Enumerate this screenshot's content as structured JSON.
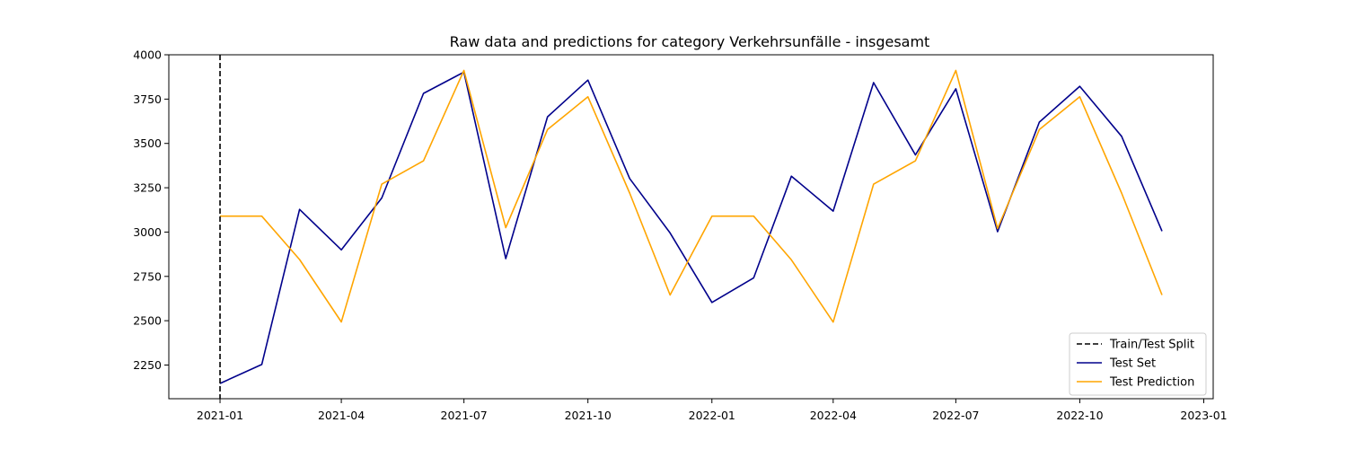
{
  "chart_data": {
    "type": "line",
    "title": "Raw data and predictions for category Verkehrsunfälle - insgesamt",
    "xlabel": "",
    "ylabel": "",
    "x_tick_labels": [
      "2021-01",
      "2021-04",
      "2021-07",
      "2021-10",
      "2022-01",
      "2022-04",
      "2022-07",
      "2022-10",
      "2023-01"
    ],
    "x_ticks": [
      "2021-01-01",
      "2021-04-01",
      "2021-07-01",
      "2021-10-01",
      "2022-01-01",
      "2022-04-01",
      "2022-07-01",
      "2022-10-01",
      "2023-01-01"
    ],
    "y_ticks": [
      2250,
      2500,
      2750,
      3000,
      3250,
      3500,
      3750,
      4000
    ],
    "xlim": [
      "2020-11-24",
      "2023-01-08"
    ],
    "ylim": [
      2060,
      4000
    ],
    "grid": false,
    "legend_position": "lower-right",
    "x": [
      "2021-01-01",
      "2021-02-01",
      "2021-03-01",
      "2021-04-01",
      "2021-05-01",
      "2021-06-01",
      "2021-07-01",
      "2021-08-01",
      "2021-09-01",
      "2021-10-01",
      "2021-11-01",
      "2021-12-01",
      "2022-01-01",
      "2022-02-01",
      "2022-03-01",
      "2022-04-01",
      "2022-05-01",
      "2022-06-01",
      "2022-07-01",
      "2022-08-01",
      "2022-09-01",
      "2022-10-01",
      "2022-11-01",
      "2022-12-01"
    ],
    "split": {
      "name": "Train/Test Split",
      "x": "2021-01-01",
      "color": "#000000",
      "style": "dashed"
    },
    "series": [
      {
        "name": "Test Set",
        "color": "#00008b",
        "values": [
          2146,
          2253,
          3128,
          2900,
          3192,
          3782,
          3902,
          2850,
          3650,
          3857,
          3302,
          2995,
          2603,
          2742,
          3315,
          3118,
          3843,
          3435,
          3808,
          3002,
          3620,
          3822,
          3540,
          3005
        ]
      },
      {
        "name": "Test Prediction",
        "color": "#ffa500",
        "values": [
          3090,
          3090,
          2845,
          2493,
          3270,
          3402,
          3912,
          3025,
          3578,
          3763,
          3220,
          2645,
          3090,
          3090,
          2843,
          2492,
          3270,
          3402,
          3912,
          3020,
          3578,
          3763,
          3220,
          2645
        ]
      }
    ]
  }
}
